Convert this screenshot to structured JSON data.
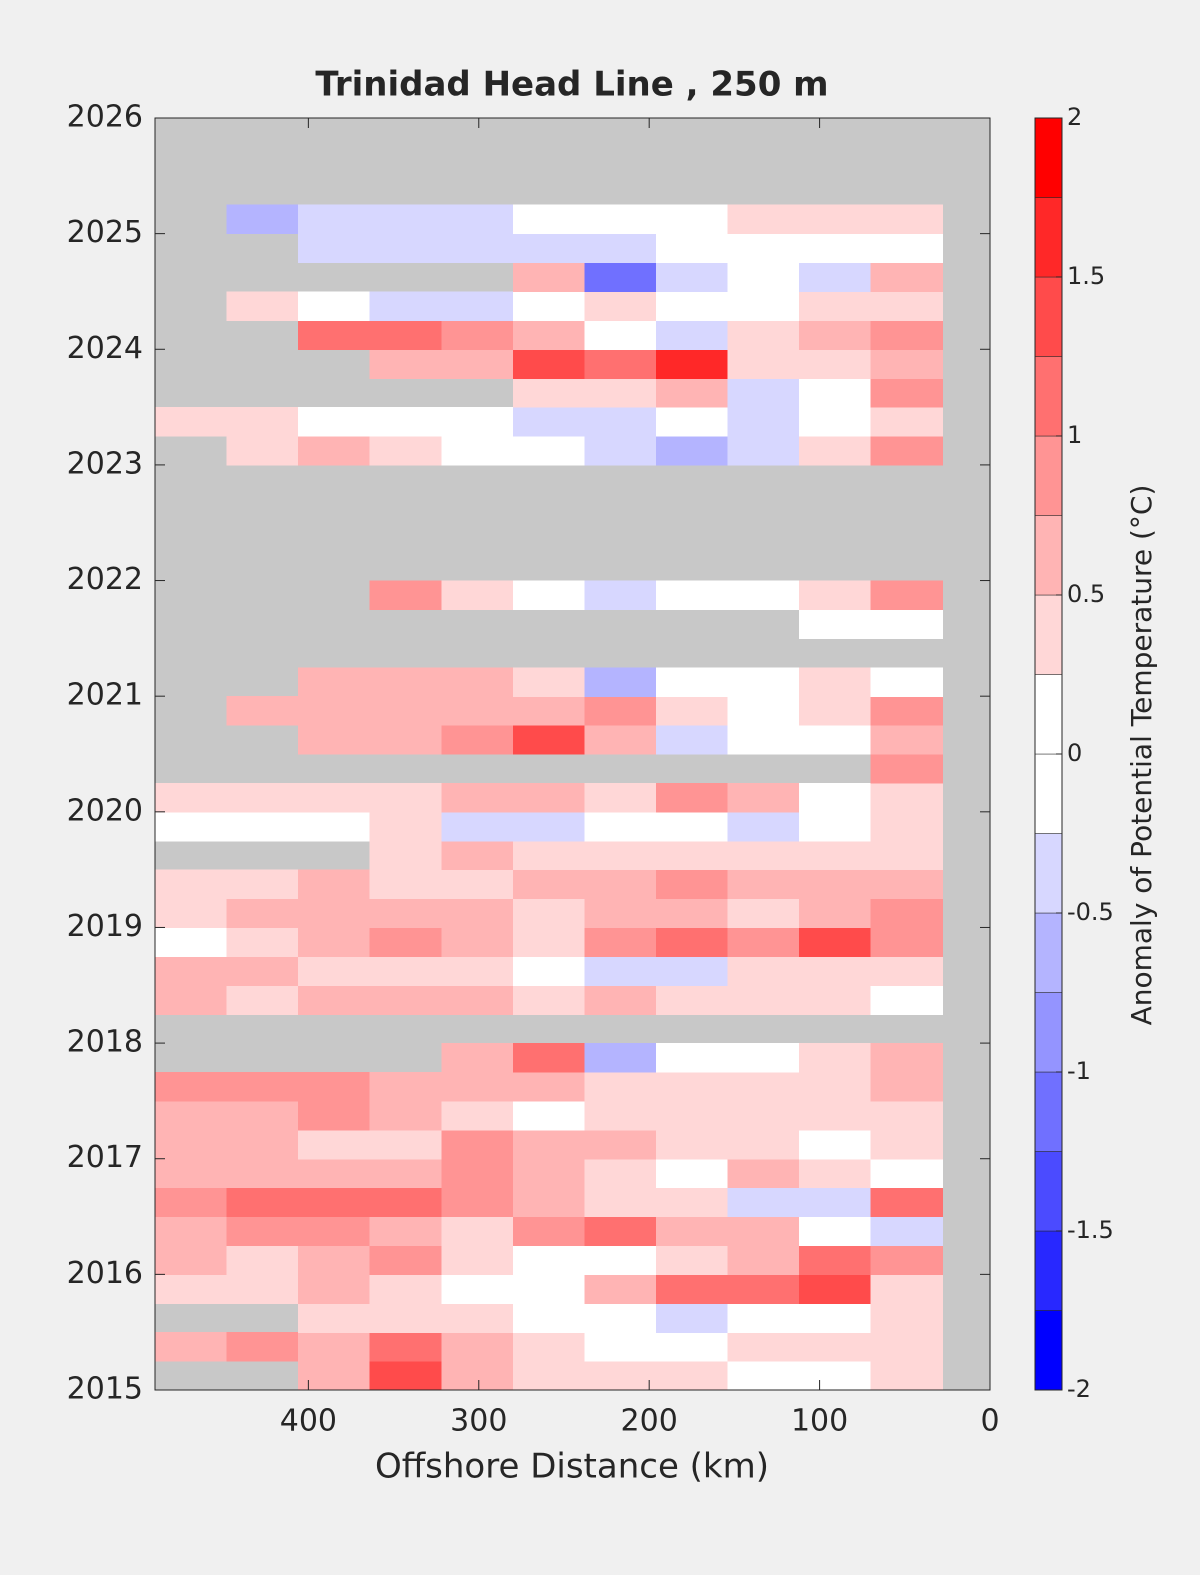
{
  "chart_data": {
    "type": "contour",
    "title": "Trinidad Head Line , 250 m",
    "xlabel": "Offshore Distance (km)",
    "colorbar_label": "Anomaly of Potential Temperature (°C)",
    "xlim": [
      490,
      0
    ],
    "xticks": [
      400,
      300,
      200,
      100,
      0
    ],
    "ylim": [
      2015,
      2026
    ],
    "yticks": [
      2015,
      2016,
      2017,
      2018,
      2019,
      2020,
      2021,
      2022,
      2023,
      2024,
      2025,
      2026
    ],
    "clim": [
      -2,
      2
    ],
    "cticks": [
      -2,
      -1.5,
      -1,
      -0.5,
      0,
      0.5,
      1,
      1.5,
      2
    ],
    "levels": [
      -2,
      -1.75,
      -1.5,
      -1.25,
      -1,
      -0.75,
      -0.5,
      -0.25,
      0,
      0.25,
      0.5,
      0.75,
      1,
      1.25,
      1.5,
      1.75,
      2
    ],
    "colors": [
      "#0000ff",
      "#2828ff",
      "#4b4bff",
      "#7070ff",
      "#9494ff",
      "#b4b4ff",
      "#d7d7ff",
      "#ffffff",
      "#ffffff",
      "#ffd7d7",
      "#ffb4b4",
      "#ff9494",
      "#ff7070",
      "#ff4b4b",
      "#ff2828",
      "#ff0000"
    ],
    "missing_color": "#c8c8c8",
    "x": [
      469,
      427,
      385,
      343,
      301,
      259,
      217,
      175,
      133,
      91,
      49
    ],
    "y": [
      2015.125,
      2015.375,
      2015.625,
      2015.875,
      2016.125,
      2016.375,
      2016.625,
      2016.875,
      2017.125,
      2017.375,
      2017.625,
      2017.875,
      2018.125,
      2018.375,
      2018.625,
      2018.875,
      2019.125,
      2019.375,
      2019.625,
      2019.875,
      2020.125,
      2020.375,
      2020.625,
      2020.875,
      2021.125,
      2021.375,
      2021.625,
      2021.875,
      2022.125,
      2022.375,
      2022.625,
      2022.875,
      2023.125,
      2023.375,
      2023.625,
      2023.875,
      2024.125,
      2024.375,
      2024.625,
      2024.875,
      2025.125,
      2025.375,
      2025.625,
      2025.875
    ],
    "z": [
      [
        null,
        null,
        0.6,
        1.3,
        0.6,
        0.4,
        0.4,
        0.3,
        0,
        0,
        0.4
      ],
      [
        0.7,
        0.9,
        0.7,
        1.0,
        0.6,
        0.4,
        0.2,
        0,
        0.3,
        0.3,
        0.4
      ],
      [
        null,
        null,
        0.4,
        0.4,
        0.4,
        0,
        0,
        -0.4,
        0,
        0,
        0.4
      ],
      [
        0.4,
        0.3,
        0.6,
        0.3,
        0,
        0,
        0.7,
        1.1,
        1.0,
        1.3,
        0.4
      ],
      [
        0.6,
        0.4,
        0.6,
        0.9,
        0.4,
        0,
        0,
        0.4,
        0.6,
        1.0,
        0.9
      ],
      [
        0.6,
        0.9,
        0.9,
        0.6,
        0.4,
        0.9,
        1.0,
        0.7,
        0.5,
        0,
        -0.4
      ],
      [
        0.9,
        1.0,
        1.0,
        1.2,
        0.9,
        0.6,
        0.4,
        0.3,
        -0.4,
        -0.4,
        1.0
      ],
      [
        0.6,
        0.6,
        0.6,
        0.6,
        0.9,
        0.6,
        0.4,
        0,
        0.7,
        0.4,
        0
      ],
      [
        0.6,
        0.6,
        0.4,
        0.4,
        0.9,
        0.6,
        0.6,
        0.4,
        0.4,
        0,
        0.4
      ],
      [
        0.7,
        0.6,
        0.9,
        0.6,
        0.4,
        0,
        0.4,
        0.4,
        0.4,
        0.4,
        0.3
      ],
      [
        0.9,
        0.9,
        0.9,
        0.6,
        0.6,
        0.6,
        0.4,
        0.4,
        0.4,
        0.4,
        0.6
      ],
      [
        null,
        null,
        null,
        null,
        0.6,
        1.0,
        -0.6,
        0,
        0,
        0.4,
        0.5
      ],
      [
        null,
        null,
        null,
        null,
        null,
        null,
        null,
        null,
        null,
        null,
        null
      ],
      [
        0.6,
        0.4,
        0.6,
        0.6,
        0.6,
        0.4,
        0.6,
        0.4,
        0.4,
        0.4,
        0
      ],
      [
        0.6,
        0.6,
        0.4,
        0.4,
        0.4,
        0,
        -0.4,
        -0.4,
        0.4,
        0.4,
        0.4
      ],
      [
        0,
        0.4,
        0.6,
        0.9,
        0.6,
        0.4,
        0.9,
        1.2,
        0.9,
        1.4,
        0.9
      ],
      [
        0.3,
        0.6,
        0.6,
        0.6,
        0.6,
        0.4,
        0.6,
        0.6,
        0.4,
        0.6,
        0.9
      ],
      [
        0.4,
        0.4,
        0.6,
        0.4,
        0.4,
        0.6,
        0.6,
        0.9,
        0.6,
        0.6,
        0.6
      ],
      [
        null,
        null,
        null,
        0.4,
        0.6,
        0.4,
        0.4,
        0.4,
        0.4,
        0.4,
        0.4
      ],
      [
        0,
        0,
        0,
        0.4,
        -0.4,
        -0.4,
        0,
        0,
        -0.4,
        0,
        0.4
      ],
      [
        0.4,
        0.4,
        0.4,
        0.4,
        0.6,
        0.6,
        0.4,
        0.9,
        0.6,
        0,
        0.4
      ],
      [
        null,
        null,
        null,
        null,
        null,
        null,
        null,
        null,
        null,
        null,
        0.9
      ],
      [
        null,
        null,
        0.6,
        0.6,
        0.9,
        1.4,
        0.6,
        -0.4,
        0,
        0,
        0.6
      ],
      [
        null,
        0.6,
        0.6,
        0.6,
        0.6,
        0.6,
        0.9,
        0.4,
        0,
        0.4,
        0.9
      ],
      [
        null,
        null,
        0.6,
        0.6,
        0.6,
        0.4,
        -0.6,
        0,
        0,
        0.4,
        0
      ],
      [
        null,
        null,
        null,
        null,
        null,
        null,
        null,
        null,
        null,
        null,
        null
      ],
      [
        null,
        null,
        null,
        null,
        null,
        null,
        null,
        null,
        null,
        0,
        0
      ],
      [
        null,
        null,
        null,
        0.9,
        0.4,
        0,
        -0.4,
        0,
        0,
        0.4,
        0.9
      ],
      [
        null,
        null,
        null,
        null,
        null,
        null,
        null,
        null,
        null,
        null,
        null
      ],
      [
        null,
        null,
        null,
        null,
        null,
        null,
        null,
        null,
        null,
        null,
        null
      ],
      [
        null,
        null,
        null,
        null,
        null,
        null,
        null,
        null,
        null,
        null,
        null
      ],
      [
        null,
        null,
        null,
        null,
        null,
        null,
        null,
        null,
        null,
        null,
        null
      ],
      [
        null,
        0.4,
        0.6,
        0.4,
        0,
        0,
        -0.4,
        -0.6,
        -0.4,
        0.4,
        0.9
      ],
      [
        0.3,
        0.4,
        0,
        0,
        0,
        -0.4,
        -0.4,
        0,
        -0.4,
        0,
        0.4
      ],
      [
        null,
        null,
        null,
        null,
        null,
        0.4,
        0.4,
        0.6,
        -0.4,
        0,
        0.9
      ],
      [
        null,
        null,
        null,
        0.6,
        0.6,
        1.4,
        1.1,
        1.6,
        0.4,
        0.4,
        0.6
      ],
      [
        null,
        null,
        1.2,
        1.2,
        0.9,
        0.6,
        0,
        -0.4,
        0.4,
        0.6,
        0.9
      ],
      [
        null,
        0.4,
        0,
        -0.4,
        -0.4,
        0,
        0.4,
        0,
        0,
        0.4,
        0.4
      ],
      [
        null,
        null,
        null,
        null,
        null,
        0.6,
        -1.2,
        -0.4,
        0,
        -0.4,
        0.6
      ],
      [
        null,
        null,
        -0.4,
        -0.4,
        -0.4,
        -0.4,
        -0.4,
        0,
        0,
        0,
        0
      ],
      [
        null,
        -0.6,
        -0.4,
        -0.4,
        -0.4,
        0,
        0,
        0,
        0.4,
        0.4,
        0.4
      ],
      [
        null,
        null,
        null,
        null,
        null,
        null,
        null,
        null,
        null,
        null,
        null
      ],
      [
        null,
        null,
        null,
        null,
        null,
        null,
        null,
        null,
        null,
        null,
        null
      ],
      [
        null,
        null,
        null,
        null,
        null,
        null,
        null,
        null,
        null,
        null,
        null
      ]
    ]
  }
}
